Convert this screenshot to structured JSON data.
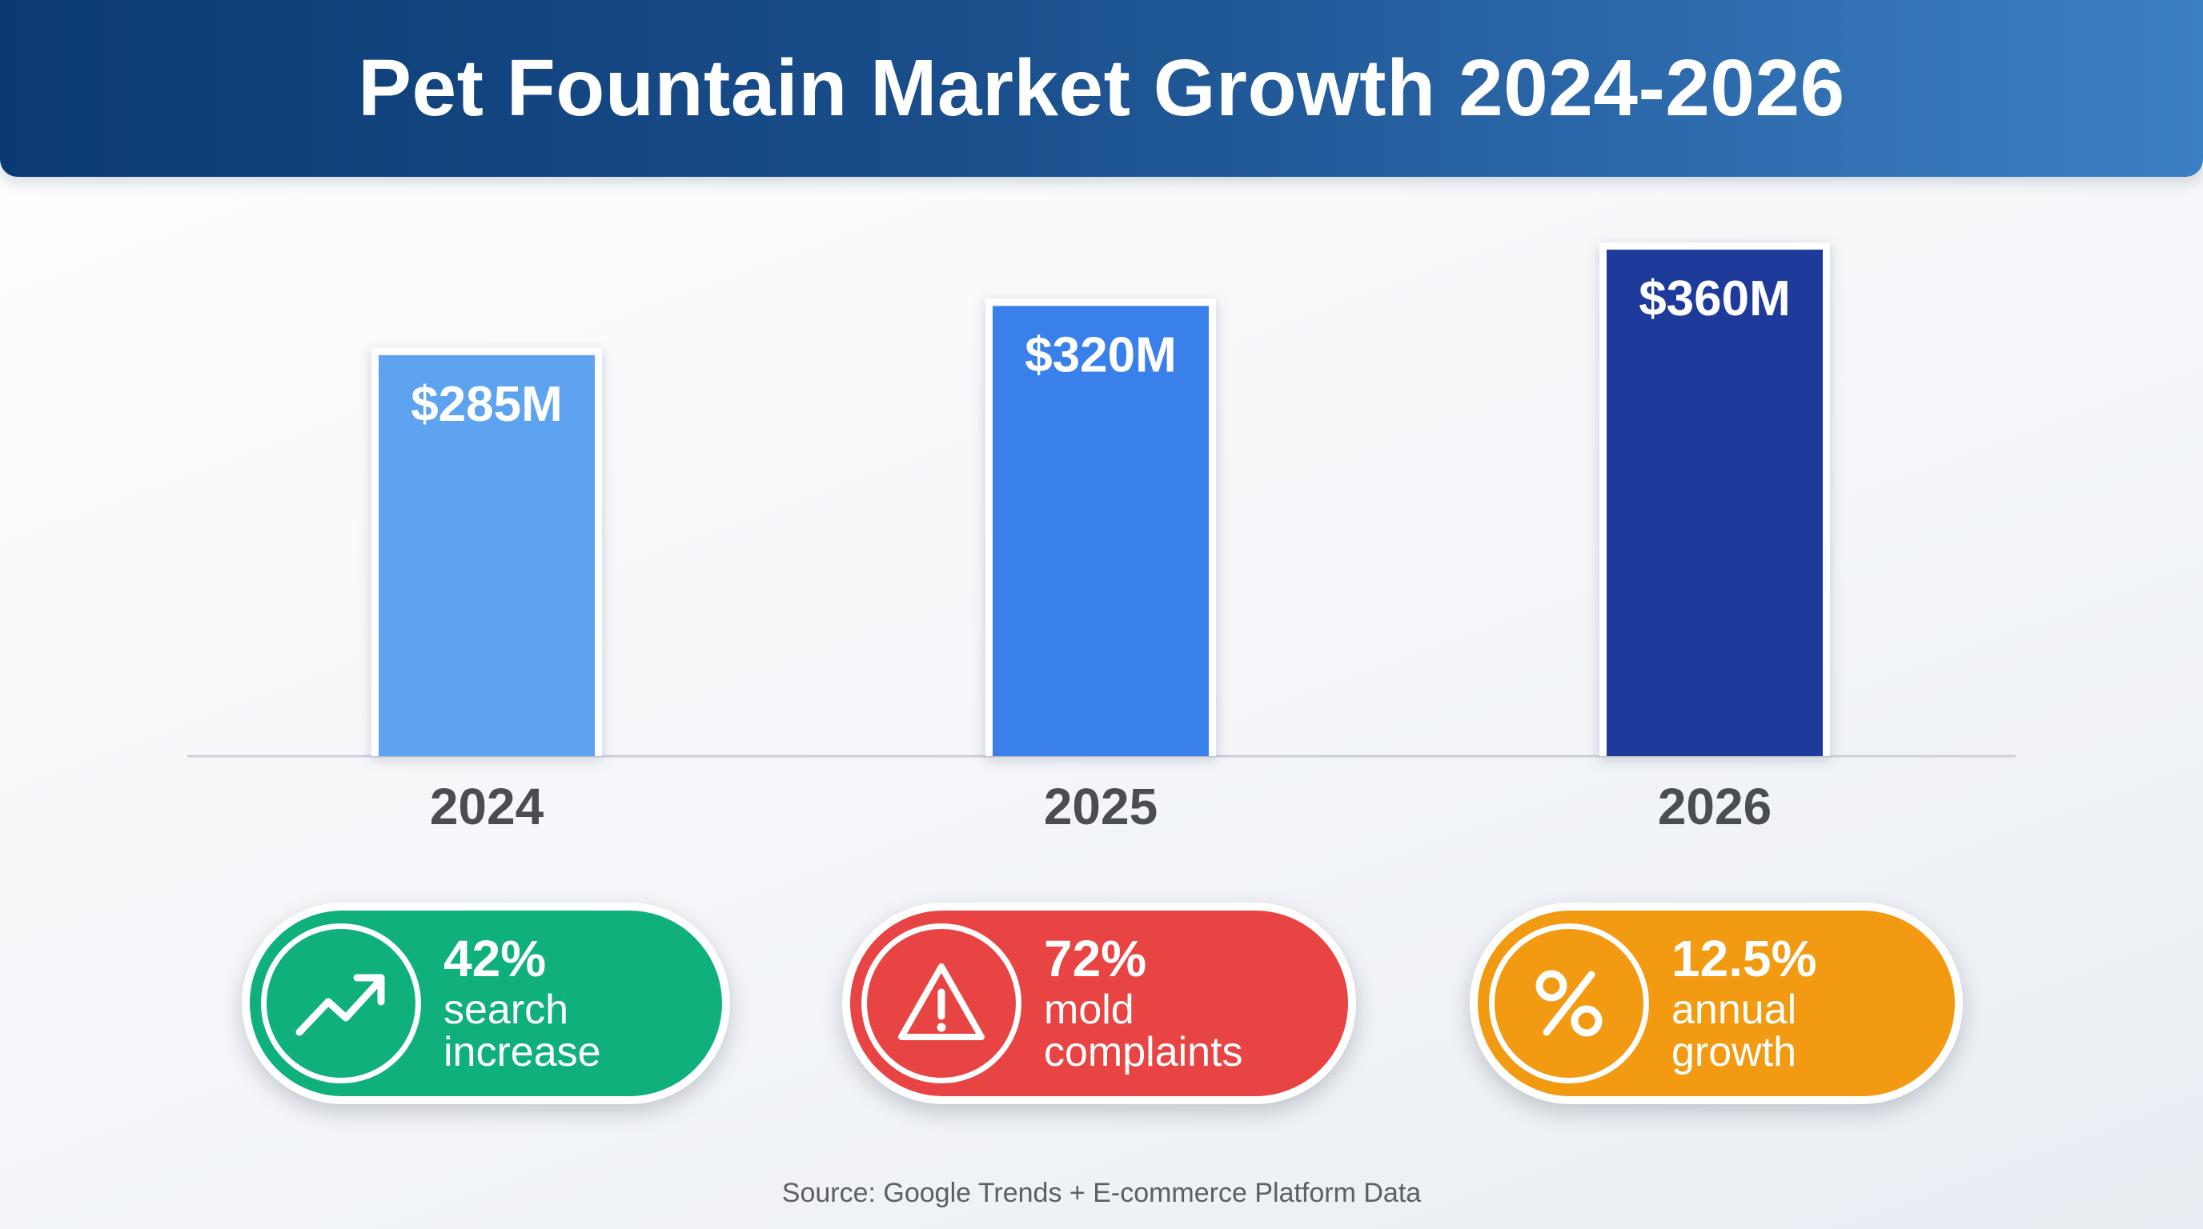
{
  "header": {
    "title": "Pet Fountain Market Growth 2024-2026"
  },
  "chart_data": {
    "type": "bar",
    "title": "Pet Fountain Market Growth 2024-2026",
    "categories": [
      "2024",
      "2025",
      "2026"
    ],
    "values": [
      285,
      320,
      360
    ],
    "value_labels": [
      "$285M",
      "$320M",
      "$360M"
    ],
    "unit": "$M",
    "ylim": [
      0,
      360
    ],
    "bar_colors": [
      "#5ea3f0",
      "#3a80ea",
      "#1e3a9a"
    ],
    "xlabel": "",
    "ylabel": "",
    "grid": false
  },
  "stats": [
    {
      "value": "42%",
      "line1": "search",
      "line2": "increase",
      "icon": "trending-up-icon",
      "color": "#10b07c"
    },
    {
      "value": "72%",
      "line1": "mold",
      "line2": "complaints",
      "icon": "warning-icon",
      "color": "#e94444"
    },
    {
      "value": "12.5%",
      "line1": "annual",
      "line2": "growth",
      "icon": "percent-icon",
      "color": "#f19a12"
    }
  ],
  "footer": {
    "source": "Source: Google Trends + E-commerce Platform Data"
  }
}
